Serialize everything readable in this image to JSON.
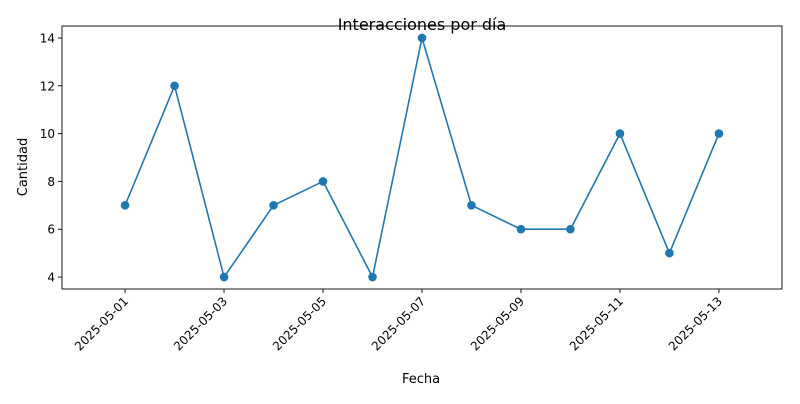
{
  "chart_data": {
    "type": "line",
    "title": "Interacciones por día",
    "xlabel": "Fecha",
    "ylabel": "Cantidad",
    "x": [
      "2025-05-01",
      "2025-05-02",
      "2025-05-03",
      "2025-05-04",
      "2025-05-05",
      "2025-05-06",
      "2025-05-07",
      "2025-05-08",
      "2025-05-09",
      "2025-05-10",
      "2025-05-11",
      "2025-05-12",
      "2025-05-13"
    ],
    "series": [
      {
        "values": [
          7,
          12,
          4,
          7,
          8,
          4,
          14,
          7,
          6,
          6,
          10,
          5,
          10
        ],
        "color": "#1f77b4",
        "marker": "circle"
      }
    ],
    "x_ticks": [
      "2025-05-01",
      "2025-05-03",
      "2025-05-05",
      "2025-05-07",
      "2025-05-09",
      "2025-05-11",
      "2025-05-13"
    ],
    "y_ticks": [
      4,
      6,
      8,
      10,
      12,
      14
    ],
    "xlim": [
      "2025-04-29T17:24:00",
      "2025-05-14T06:36:00"
    ],
    "ylim": [
      3.5,
      14.5
    ],
    "grid": false,
    "x_tick_rotation": 45
  }
}
